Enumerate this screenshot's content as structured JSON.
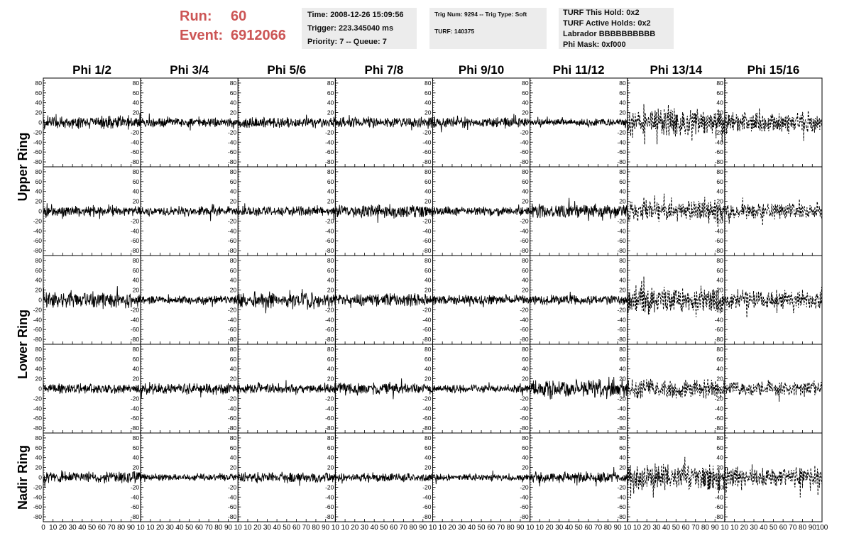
{
  "header": {
    "run_label": "Run:",
    "run_value": "60",
    "event_label": "Event:",
    "event_value": "6912066",
    "time": "Time: 2008-12-26 15:09:56",
    "trigger": "Trigger: 223.345040 ms",
    "priority": "Priority: 7 -- Queue: 7",
    "trig_info": "Trig Num: 9294 -- Trig Type: Soft",
    "turf_num": "TURF: 140375",
    "turf_hold": "TURF This Hold: 0x2",
    "turf_active": "TURF Active Holds: 0x2",
    "labrador": "Labrador BBBBBBBBBB",
    "phi_mask": "Phi Mask: 0xf000",
    "colors": {
      "run_text": "#cc5555",
      "info_bg": "#ececec"
    }
  },
  "chart_data": {
    "type": "line",
    "title": "",
    "columns": [
      "Phi 1/2",
      "Phi 3/4",
      "Phi 5/6",
      "Phi 7/8",
      "Phi 9/10",
      "Phi 11/12",
      "Phi 13/14",
      "Phi 15/16"
    ],
    "ring_labels": [
      {
        "label": "Upper Ring",
        "rows": [
          0,
          1
        ]
      },
      {
        "label": "Lower Ring",
        "rows": [
          2,
          3
        ]
      },
      {
        "label": "Nadir Ring",
        "rows": [
          4
        ]
      }
    ],
    "rows": 5,
    "xlim": [
      0,
      100
    ],
    "ylim": [
      -90,
      90
    ],
    "y_ticks": [
      -80,
      -60,
      -40,
      -20,
      0,
      20,
      40,
      60,
      80
    ],
    "y_tick_labels": [
      "-80",
      "-60",
      "-40",
      "-20",
      "0",
      "20",
      "40",
      "60",
      "80"
    ],
    "x_ticks": [
      0,
      10,
      20,
      30,
      40,
      50,
      60,
      70,
      80,
      90,
      100
    ],
    "x_tick_labels_per_column": [
      "0",
      "10",
      "20",
      "30",
      "40",
      "50",
      "60",
      "70",
      "80",
      "90",
      "10"
    ],
    "x_tick_label_last": "100",
    "grid": false,
    "dashed_columns": [
      6,
      7
    ],
    "waveform_amplitude": [
      [
        18,
        13,
        15,
        15,
        15,
        10,
        38,
        28
      ],
      [
        14,
        14,
        14,
        18,
        12,
        20,
        28,
        22
      ],
      [
        22,
        12,
        22,
        18,
        14,
        14,
        38,
        26
      ],
      [
        14,
        16,
        14,
        17,
        12,
        26,
        27,
        20
      ],
      [
        16,
        10,
        15,
        12,
        10,
        15,
        35,
        28
      ]
    ],
    "samples_per_trace": 260
  }
}
